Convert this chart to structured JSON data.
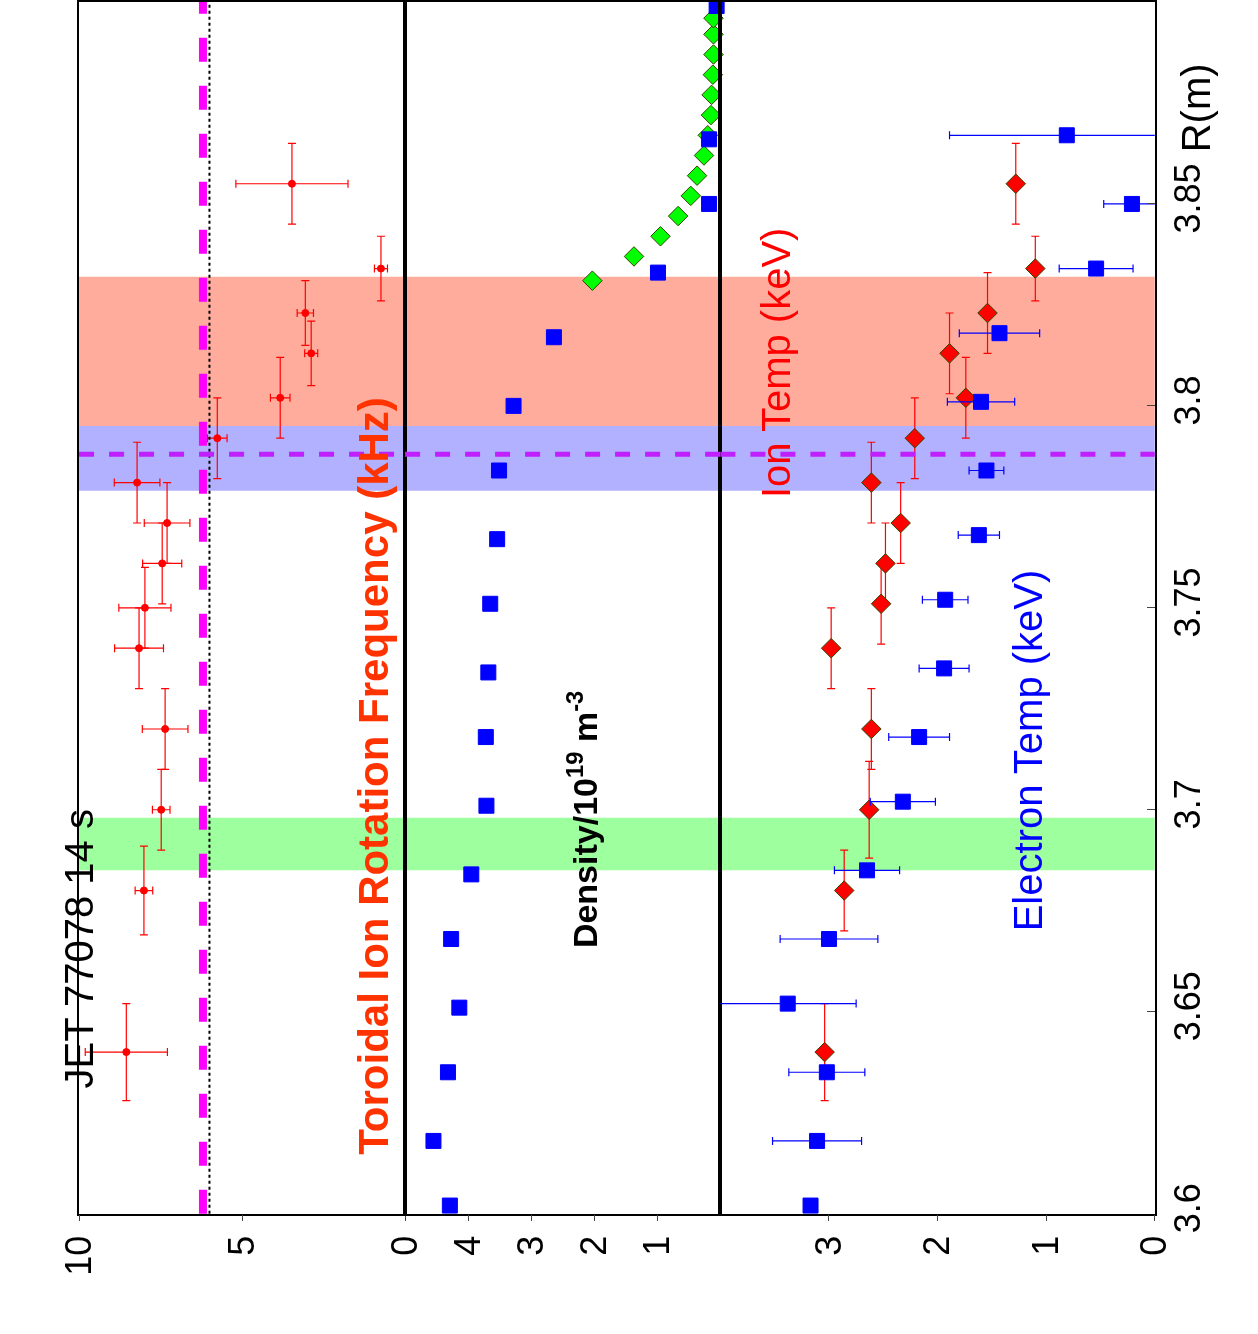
{
  "chart_data": [
    {
      "type": "scatter",
      "annotations": [
        "JET 77078 14 s",
        "Toroidal Ion Rotation Frequency (kHz)"
      ],
      "xlim": [
        10,
        0
      ],
      "xticks": [
        10,
        5,
        0
      ],
      "ylim": [
        3.6,
        3.9
      ],
      "tick_labels": "x",
      "marker": "circle",
      "series": [
        {
          "color": "#ff0000",
          "x": [
            8.55,
            8.01,
            7.48,
            7.36,
            8.16,
            7.98,
            7.45,
            7.3,
            8.22,
            5.76,
            3.83,
            2.88,
            3.06,
            0.74,
            3.47
          ],
          "values": [
            3.64,
            3.68,
            3.7,
            3.72,
            3.74,
            3.75,
            3.761,
            3.771,
            3.781,
            3.792,
            3.802,
            3.813,
            3.823,
            3.834,
            3.855
          ],
          "xerrors": [
            1.26,
            0.27,
            0.27,
            0.7,
            0.75,
            0.8,
            0.6,
            0.7,
            0.7,
            0.3,
            0.3,
            0.2,
            0.25,
            0.2,
            1.72
          ],
          "errors": [
            0.012,
            0.011,
            0.01,
            0.01,
            0.01,
            0.01,
            0.01,
            0.01,
            0.01,
            0.01,
            0.01,
            0.008,
            0.008,
            0.008,
            0.01
          ]
        }
      ],
      "ref_lines": [
        {
          "axis": "x",
          "value": 6.2,
          "color": "#ff00ff",
          "line_style": "dashed"
        },
        {
          "axis": "x",
          "value": 6.0,
          "color": "#000000",
          "line_style": "dotted"
        },
        {
          "axis": "y",
          "value": 3.788,
          "color": "#c020ff",
          "line_style": "dashed"
        }
      ],
      "bands": [
        {
          "axis": "y",
          "from": 3.795,
          "to": 3.832,
          "color": "#ff5a3c"
        },
        {
          "axis": "y",
          "from": 3.779,
          "to": 3.795,
          "color": "#6464ff"
        },
        {
          "axis": "y",
          "from": 3.685,
          "to": 3.698,
          "color": "#3cff3c"
        }
      ]
    },
    {
      "type": "scatter",
      "annotations": [
        "Density/10$^{19}$ m$^{-3}$"
      ],
      "xlim": [
        5,
        0
      ],
      "xticks": [
        4,
        3,
        2,
        1
      ],
      "ylim": [
        3.6,
        3.9
      ],
      "tick_labels": "x",
      "series": [
        {
          "color": "#00ff00",
          "marker": "diamond",
          "x": [
            2.03,
            1.37,
            0.95,
            0.67,
            0.47,
            0.37,
            0.26,
            0.2,
            0.15,
            0.14,
            0.12,
            0.11,
            0.11,
            0.11
          ],
          "values": [
            3.831,
            3.837,
            3.842,
            3.847,
            3.852,
            3.857,
            3.862,
            3.867,
            3.872,
            3.877,
            3.882,
            3.887,
            3.892,
            3.896
          ]
        },
        {
          "color": "#0000ff",
          "marker": "square",
          "x": [
            4.29,
            4.55,
            4.32,
            4.14,
            4.27,
            3.95,
            3.71,
            3.72,
            3.68,
            3.65,
            3.54,
            3.51,
            3.28,
            2.64,
            0.99,
            0.18,
            0.18,
            0.06
          ],
          "values": [
            3.602,
            3.618,
            3.635,
            3.651,
            3.668,
            3.684,
            3.701,
            3.718,
            3.734,
            3.751,
            3.767,
            3.784,
            3.8,
            3.817,
            3.833,
            3.85,
            3.866,
            3.899
          ]
        }
      ],
      "ref_lines": [
        {
          "axis": "y",
          "value": 3.788,
          "color": "#c020ff",
          "line_style": "dashed"
        }
      ],
      "bands": [
        {
          "axis": "y",
          "from": 3.795,
          "to": 3.832,
          "color": "#ff5a3c"
        },
        {
          "axis": "y",
          "from": 3.779,
          "to": 3.795,
          "color": "#6464ff"
        },
        {
          "axis": "y",
          "from": 3.685,
          "to": 3.698,
          "color": "#3cff3c"
        }
      ]
    },
    {
      "type": "scatter",
      "ylabel": "R(m)",
      "xlim": [
        4,
        0
      ],
      "xticks": [
        3,
        2,
        1,
        0
      ],
      "ylim": [
        3.6,
        3.9
      ],
      "yticks": [
        3.6,
        3.65,
        3.7,
        3.75,
        3.8,
        3.85
      ],
      "series": [
        {
          "name": "Ion Temp (keV)",
          "color": "#ff0000",
          "marker": "diamond",
          "x": [
            3.04,
            2.86,
            2.63,
            2.61,
            2.98,
            2.52,
            2.48,
            2.34,
            2.61,
            2.21,
            1.74,
            1.89,
            1.54,
            1.1,
            1.28
          ],
          "values": [
            3.64,
            3.68,
            3.7,
            3.72,
            3.74,
            3.751,
            3.761,
            3.771,
            3.781,
            3.792,
            3.802,
            3.813,
            3.823,
            3.834,
            3.855
          ],
          "errors": [
            0.012,
            0.01,
            0.012,
            0.01,
            0.01,
            0.01,
            0.01,
            0.01,
            0.01,
            0.01,
            0.01,
            0.01,
            0.01,
            0.008,
            0.01
          ]
        },
        {
          "name": "Electron Temp (keV)",
          "color": "#0000ff",
          "marker": "square",
          "x": [
            3.17,
            3.11,
            3.02,
            3.38,
            3.0,
            2.65,
            2.32,
            2.17,
            1.94,
            1.93,
            1.62,
            1.55,
            1.6,
            1.43,
            0.54,
            0.21,
            0.81
          ],
          "values": [
            3.602,
            3.618,
            3.635,
            3.652,
            3.668,
            3.685,
            3.702,
            3.718,
            3.735,
            3.752,
            3.768,
            3.784,
            3.801,
            3.818,
            3.834,
            3.85,
            3.867
          ],
          "xerrors": [
            null,
            0.41,
            0.35,
            0.63,
            0.45,
            0.3,
            0.3,
            0.28,
            0.23,
            0.21,
            0.19,
            0.16,
            0.31,
            0.37,
            0.34,
            0.26,
            1.08
          ]
        }
      ],
      "ref_lines": [
        {
          "axis": "y",
          "value": 3.788,
          "color": "#c020ff",
          "line_style": "dashed"
        }
      ],
      "bands": [
        {
          "axis": "y",
          "from": 3.795,
          "to": 3.832,
          "color": "#ff5a3c"
        },
        {
          "axis": "y",
          "from": 3.779,
          "to": 3.795,
          "color": "#6464ff"
        },
        {
          "axis": "y",
          "from": 3.685,
          "to": 3.698,
          "color": "#3cff3c"
        }
      ]
    }
  ]
}
